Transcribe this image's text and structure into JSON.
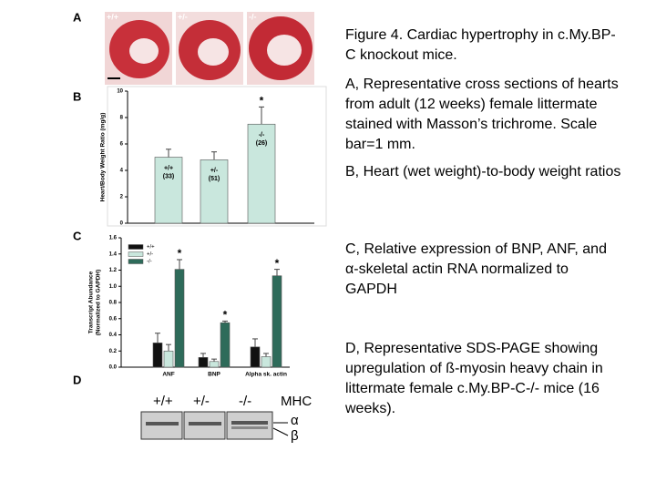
{
  "panel_labels": [
    "A",
    "B",
    "C",
    "D"
  ],
  "panel_a": {
    "genotypes": [
      "+/+",
      "+/-",
      "-/-"
    ]
  },
  "chart_data": [
    {
      "type": "bar",
      "ylabel": "Heart/Body Weight Ratio (mg/g)",
      "categories": [
        "+/+",
        "+/-",
        "-/-"
      ],
      "n_labels": [
        "(33)",
        "(51)",
        "(26)"
      ],
      "values": [
        5.0,
        4.8,
        7.5
      ],
      "errors": [
        0.6,
        0.6,
        1.3
      ],
      "significance": [
        null,
        null,
        "*"
      ],
      "color": "#c9e7dd",
      "ylim": [
        0,
        10
      ],
      "yticks": [
        0,
        2,
        4,
        6,
        8,
        10
      ]
    },
    {
      "type": "bar",
      "ylabel": [
        "Transcript Abundance",
        "(Normalized to GAPDH)"
      ],
      "categories": [
        "ANF",
        "BNP",
        "Alpha sk. actin"
      ],
      "series": [
        {
          "name": "+/+",
          "color": "#111111",
          "values": [
            0.3,
            0.12,
            0.25
          ],
          "errors": [
            0.12,
            0.05,
            0.1
          ],
          "significance": [
            null,
            null,
            null
          ]
        },
        {
          "name": "+/-",
          "color": "#c9e7dd",
          "values": [
            0.2,
            0.07,
            0.13
          ],
          "errors": [
            0.08,
            0.03,
            0.04
          ],
          "significance": [
            null,
            null,
            null
          ]
        },
        {
          "name": "-/-",
          "color": "#2e6b5a",
          "values": [
            1.21,
            0.55,
            1.13
          ],
          "errors": [
            0.12,
            0.02,
            0.08
          ],
          "significance": [
            "*",
            "*",
            "*"
          ]
        }
      ],
      "ylim": [
        0,
        1.6
      ],
      "yticks": [
        {
          "value": 0,
          "label": "0.0"
        },
        0.2,
        0.4,
        0.6,
        0.8,
        {
          "value": 1,
          "label": "1.0"
        },
        1.2,
        1.4,
        1.6
      ]
    }
  ],
  "panel_d": {
    "lanes": [
      "+/+",
      "+/-",
      "-/-"
    ],
    "marker": "MHC",
    "bands": [
      "α",
      "β"
    ]
  },
  "caption": [
    "Figure 4. Cardiac hypertrophy in c.My.BP-C knockout mice.",
    "A, Representative cross sections of hearts from adult (12 weeks) female littermate  stained with Masson’s trichrome. Scale bar=1 mm.",
    "B, Heart (wet weight)-to-body weight ratios",
    "C, Relative expression of BNP, ANF, and α-skeletal actin RNA normalized to GAPDH",
    "D, Representative SDS-PAGE showing upregulation of ß-myosin heavy chain in littermate female c.My.BP-C-/- mice (16 weeks)."
  ]
}
